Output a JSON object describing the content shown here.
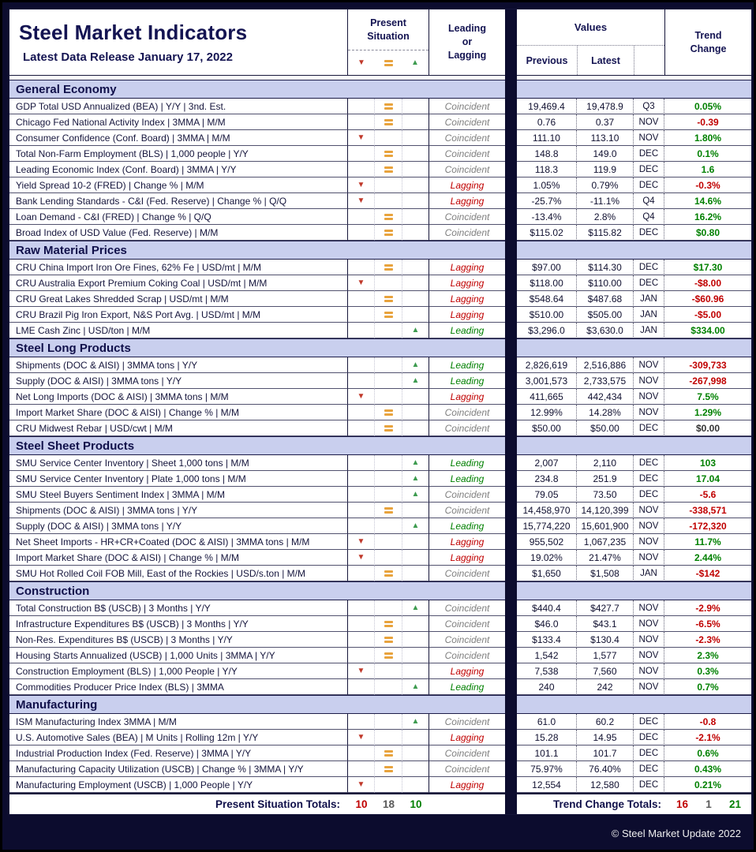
{
  "header": {
    "title": "Steel Market Indicators",
    "subtitle": "Latest Data Release January 17, 2022",
    "present_situation": "Present Situation",
    "leading_or_lagging": "Leading or Lagging",
    "values": "Values",
    "previous": "Previous",
    "latest": "Latest",
    "trend_change": "Trend Change"
  },
  "icons": {
    "down-triangle-icon": "▼",
    "equals-icon": "=",
    "up-triangle-icon": "▲"
  },
  "colors": {
    "red": "#C00000",
    "green": "#008000",
    "orange": "#E8A33D",
    "navy": "#141452",
    "neutral_gray": "#5A5A5A",
    "section_bg": "#C9CFEE",
    "coincident_gray": "#7F7F7F"
  },
  "sections": [
    {
      "name": "General Economy",
      "rows": [
        {
          "indicator": "GDP Total USD Annualized (BEA) | Y/Y | 3nd. Est.",
          "situation": "equal",
          "class": "Coincident",
          "previous": "19,469.4",
          "latest": "19,478.9",
          "period": "Q3",
          "trend": "0.05%",
          "trend_color": "green"
        },
        {
          "indicator": "Chicago Fed National Activity Index | 3MMA | M/M",
          "situation": "equal",
          "class": "Coincident",
          "previous": "0.76",
          "latest": "0.37",
          "period": "NOV",
          "trend": "-0.39",
          "trend_color": "red"
        },
        {
          "indicator": "Consumer Confidence (Conf. Board) | 3MMA | M/M",
          "situation": "down",
          "class": "Coincident",
          "previous": "111.10",
          "latest": "113.10",
          "period": "NOV",
          "trend": "1.80%",
          "trend_color": "green"
        },
        {
          "indicator": "Total Non-Farm Employment (BLS) | 1,000 people | Y/Y",
          "situation": "equal",
          "class": "Coincident",
          "previous": "148.8",
          "latest": "149.0",
          "period": "DEC",
          "trend": "0.1%",
          "trend_color": "green"
        },
        {
          "indicator": "Leading Economic Index (Conf. Board) | 3MMA | Y/Y",
          "situation": "equal",
          "class": "Coincident",
          "previous": "118.3",
          "latest": "119.9",
          "period": "DEC",
          "trend": "1.6",
          "trend_color": "green"
        },
        {
          "indicator": "Yield Spread 10-2 (FRED) | Change % | M/M",
          "situation": "down",
          "class": "Lagging",
          "previous": "1.05%",
          "latest": "0.79%",
          "period": "DEC",
          "trend": "-0.3%",
          "trend_color": "red"
        },
        {
          "indicator": "Bank Lending Standards - C&I (Fed. Reserve) | Change % | Q/Q",
          "situation": "down",
          "class": "Lagging",
          "previous": "-25.7%",
          "latest": "-11.1%",
          "period": "Q4",
          "trend": "14.6%",
          "trend_color": "green"
        },
        {
          "indicator": "Loan Demand - C&I (FRED) | Change % | Q/Q",
          "situation": "equal",
          "class": "Coincident",
          "previous": "-13.4%",
          "latest": "2.8%",
          "period": "Q4",
          "trend": "16.2%",
          "trend_color": "green"
        },
        {
          "indicator": "Broad Index of USD Value (Fed. Reserve) | M/M",
          "situation": "equal",
          "class": "Coincident",
          "previous": "$115.02",
          "latest": "$115.82",
          "period": "DEC",
          "trend": "$0.80",
          "trend_color": "green"
        }
      ]
    },
    {
      "name": "Raw Material Prices",
      "rows": [
        {
          "indicator": "CRU China Import Iron Ore Fines, 62% Fe | USD/mt | M/M",
          "situation": "equal",
          "class": "Lagging",
          "previous": "$97.00",
          "latest": "$114.30",
          "period": "DEC",
          "trend": "$17.30",
          "trend_color": "green"
        },
        {
          "indicator": "CRU Australia Export Premium Coking Coal | USD/mt | M/M",
          "situation": "down",
          "class": "Lagging",
          "previous": "$118.00",
          "latest": "$110.00",
          "period": "DEC",
          "trend": "-$8.00",
          "trend_color": "red"
        },
        {
          "indicator": "CRU Great Lakes Shredded Scrap | USD/mt | M/M",
          "situation": "equal",
          "class": "Lagging",
          "previous": "$548.64",
          "latest": "$487.68",
          "period": "JAN",
          "trend": "-$60.96",
          "trend_color": "red"
        },
        {
          "indicator": "CRU Brazil Pig Iron Export, N&S Port Avg. | USD/mt | M/M",
          "situation": "equal",
          "class": "Lagging",
          "previous": "$510.00",
          "latest": "$505.00",
          "period": "JAN",
          "trend": "-$5.00",
          "trend_color": "red"
        },
        {
          "indicator": "LME Cash Zinc | USD/ton | M/M",
          "situation": "up",
          "class": "Leading",
          "previous": "$3,296.0",
          "latest": "$3,630.0",
          "period": "JAN",
          "trend": "$334.00",
          "trend_color": "green"
        }
      ]
    },
    {
      "name": "Steel Long Products",
      "rows": [
        {
          "indicator": "Shipments (DOC & AISI) | 3MMA tons | Y/Y",
          "situation": "up",
          "class": "Leading",
          "previous": "2,826,619",
          "latest": "2,516,886",
          "period": "NOV",
          "trend": "-309,733",
          "trend_color": "red"
        },
        {
          "indicator": "Supply (DOC & AISI) | 3MMA tons | Y/Y",
          "situation": "up",
          "class": "Leading",
          "previous": "3,001,573",
          "latest": "2,733,575",
          "period": "NOV",
          "trend": "-267,998",
          "trend_color": "red"
        },
        {
          "indicator": "Net Long Imports (DOC & AISI) | 3MMA tons | M/M",
          "situation": "down",
          "class": "Lagging",
          "previous": "411,665",
          "latest": "442,434",
          "period": "NOV",
          "trend": "7.5%",
          "trend_color": "green"
        },
        {
          "indicator": "Import Market Share (DOC & AISI) | Change % | M/M",
          "situation": "equal",
          "class": "Coincident",
          "previous": "12.99%",
          "latest": "14.28%",
          "period": "NOV",
          "trend": "1.29%",
          "trend_color": "green"
        },
        {
          "indicator": "CRU Midwest Rebar | USD/cwt | M/M",
          "situation": "equal",
          "class": "Coincident",
          "previous": "$50.00",
          "latest": "$50.00",
          "period": "DEC",
          "trend": "$0.00",
          "trend_color": "neutral"
        }
      ]
    },
    {
      "name": "Steel Sheet Products",
      "rows": [
        {
          "indicator": "SMU Service Center Inventory | Sheet 1,000 tons | M/M",
          "situation": "up",
          "class": "Leading",
          "previous": "2,007",
          "latest": "2,110",
          "period": "DEC",
          "trend": "103",
          "trend_color": "green"
        },
        {
          "indicator": "SMU Service Center Inventory | Plate 1,000 tons | M/M",
          "situation": "up",
          "class": "Leading",
          "previous": "234.8",
          "latest": "251.9",
          "period": "DEC",
          "trend": "17.04",
          "trend_color": "green"
        },
        {
          "indicator": "SMU Steel Buyers Sentiment Index | 3MMA | M/M",
          "situation": "up",
          "class": "Coincident",
          "previous": "79.05",
          "latest": "73.50",
          "period": "DEC",
          "trend": "-5.6",
          "trend_color": "red"
        },
        {
          "indicator": "Shipments (DOC & AISI) | 3MMA tons | Y/Y",
          "situation": "equal",
          "class": "Coincident",
          "previous": "14,458,970",
          "latest": "14,120,399",
          "period": "NOV",
          "trend": "-338,571",
          "trend_color": "red"
        },
        {
          "indicator": "Supply (DOC & AISI) | 3MMA tons | Y/Y",
          "situation": "up",
          "class": "Leading",
          "previous": "15,774,220",
          "latest": "15,601,900",
          "period": "NOV",
          "trend": "-172,320",
          "trend_color": "red"
        },
        {
          "indicator": "Net Sheet Imports - HR+CR+Coated (DOC & AISI) | 3MMA tons | M/M",
          "situation": "down",
          "class": "Lagging",
          "previous": "955,502",
          "latest": "1,067,235",
          "period": "NOV",
          "trend": "11.7%",
          "trend_color": "green"
        },
        {
          "indicator": "Import Market Share (DOC & AISI) | Change % | M/M",
          "situation": "down",
          "class": "Lagging",
          "previous": "19.02%",
          "latest": "21.47%",
          "period": "NOV",
          "trend": "2.44%",
          "trend_color": "green"
        },
        {
          "indicator": "SMU Hot Rolled Coil FOB Mill, East of the Rockies | USD/s.ton | M/M",
          "situation": "equal",
          "class": "Coincident",
          "previous": "$1,650",
          "latest": "$1,508",
          "period": "JAN",
          "trend": "-$142",
          "trend_color": "red"
        }
      ]
    },
    {
      "name": "Construction",
      "rows": [
        {
          "indicator": "Total Construction B$ (USCB) | 3 Months | Y/Y",
          "situation": "up",
          "class": "Coincident",
          "previous": "$440.4",
          "latest": "$427.7",
          "period": "NOV",
          "trend": "-2.9%",
          "trend_color": "red"
        },
        {
          "indicator": "Infrastructure Expenditures B$ (USCB) | 3 Months | Y/Y",
          "situation": "equal",
          "class": "Coincident",
          "previous": "$46.0",
          "latest": "$43.1",
          "period": "NOV",
          "trend": "-6.5%",
          "trend_color": "red"
        },
        {
          "indicator": "Non-Res. Expenditures B$ (USCB) | 3 Months | Y/Y",
          "situation": "equal",
          "class": "Coincident",
          "previous": "$133.4",
          "latest": "$130.4",
          "period": "NOV",
          "trend": "-2.3%",
          "trend_color": "red"
        },
        {
          "indicator": "Housing Starts Annualized (USCB) | 1,000 Units | 3MMA | Y/Y",
          "situation": "equal",
          "class": "Coincident",
          "previous": "1,542",
          "latest": "1,577",
          "period": "NOV",
          "trend": "2.3%",
          "trend_color": "green"
        },
        {
          "indicator": "Construction Employment (BLS) | 1,000 People | Y/Y",
          "situation": "down",
          "class": "Lagging",
          "previous": "7,538",
          "latest": "7,560",
          "period": "NOV",
          "trend": "0.3%",
          "trend_color": "green"
        },
        {
          "indicator": "Commodities Producer Price Index (BLS) | 3MMA",
          "situation": "up",
          "class": "Leading",
          "previous": "240",
          "latest": "242",
          "period": "NOV",
          "trend": "0.7%",
          "trend_color": "green"
        }
      ]
    },
    {
      "name": "Manufacturing",
      "rows": [
        {
          "indicator": "ISM Manufacturing Index 3MMA | M/M",
          "situation": "up",
          "class": "Coincident",
          "previous": "61.0",
          "latest": "60.2",
          "period": "DEC",
          "trend": "-0.8",
          "trend_color": "red"
        },
        {
          "indicator": "U.S. Automotive Sales (BEA) | M Units | Rolling 12m | Y/Y",
          "situation": "down",
          "class": "Lagging",
          "previous": "15.28",
          "latest": "14.95",
          "period": "DEC",
          "trend": "-2.1%",
          "trend_color": "red"
        },
        {
          "indicator": "Industrial Production Index (Fed. Reserve) | 3MMA | Y/Y",
          "situation": "equal",
          "class": "Coincident",
          "previous": "101.1",
          "latest": "101.7",
          "period": "DEC",
          "trend": "0.6%",
          "trend_color": "green"
        },
        {
          "indicator": "Manufacturing Capacity Utilization (USCB) | Change % | 3MMA | Y/Y",
          "situation": "equal",
          "class": "Coincident",
          "previous": "75.97%",
          "latest": "76.40%",
          "period": "DEC",
          "trend": "0.43%",
          "trend_color": "green"
        },
        {
          "indicator": "Manufacturing Employment (USCB) | 1,000 People | Y/Y",
          "situation": "down",
          "class": "Lagging",
          "previous": "12,554",
          "latest": "12,580",
          "period": "DEC",
          "trend": "0.21%",
          "trend_color": "green"
        }
      ]
    }
  ],
  "totals": {
    "present_label": "Present Situation Totals:",
    "present_values": [
      {
        "value": "10",
        "color": "red"
      },
      {
        "value": "18",
        "color": "neutral"
      },
      {
        "value": "10",
        "color": "green"
      }
    ],
    "trend_label": "Trend Change Totals:",
    "trend_values": [
      {
        "value": "16",
        "color": "red"
      },
      {
        "value": "1",
        "color": "neutral"
      },
      {
        "value": "21",
        "color": "green"
      }
    ]
  },
  "footer": {
    "copyright": "© Steel Market Update 2022"
  }
}
